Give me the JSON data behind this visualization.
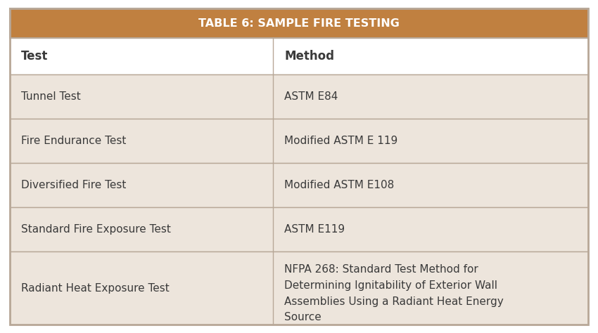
{
  "title": "TABLE 6: SAMPLE FIRE TESTING",
  "title_bg_color": "#c08040",
  "title_text_color": "#ffffff",
  "header_row": [
    "Test",
    "Method"
  ],
  "rows": [
    [
      "Tunnel Test",
      "ASTM E84"
    ],
    [
      "Fire Endurance Test",
      "Modified ASTM E 119"
    ],
    [
      "Diversified Fire Test",
      "Modified ASTM E108"
    ],
    [
      "Standard Fire Exposure Test",
      "ASTM E119"
    ],
    [
      "Radiant Heat Exposure Test",
      "NFPA 268: Standard Test Method for\nDetermining Ignitability of Exterior Wall\nAssemblies Using a Radiant Heat Energy\nSource"
    ]
  ],
  "row_bg_color": "#ede5dc",
  "header_bg_color": "#ffffff",
  "border_color": "#b8a898",
  "text_color": "#3a3a3a",
  "col_split": 0.455,
  "fig_bg_color": "#ffffff",
  "title_fontsize": 11.5,
  "header_fontsize": 12,
  "cell_fontsize": 11
}
